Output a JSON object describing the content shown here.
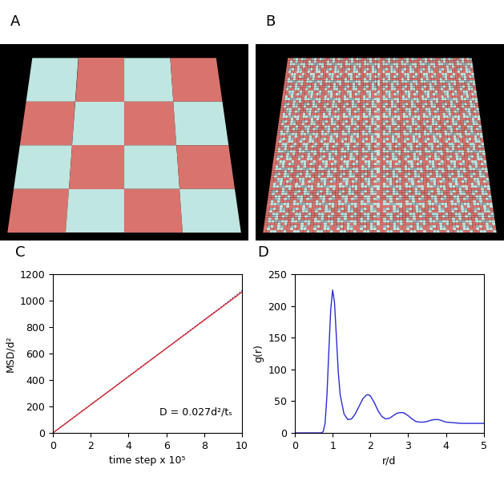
{
  "images": [
    {
      "title": "A",
      "type": "checkerboard",
      "cells": 4,
      "colors": [
        "#d9736e",
        "#bfe6e1"
      ]
    },
    {
      "title": "B",
      "type": "mixed",
      "colors": [
        "#d9736e",
        "#bfe6e1"
      ]
    }
  ],
  "chart_data": [
    {
      "type": "line",
      "title": "C",
      "x_label": "time step x 10⁵",
      "y_label": "MSD/d²",
      "annotations": [
        "D = 0.027d²/tₛ"
      ],
      "x": [
        0,
        1,
        2,
        3,
        4,
        5,
        6,
        7,
        8,
        9,
        10
      ],
      "series": [
        {
          "color": "#2b2bd6",
          "line_style": "dotted",
          "values": [
            0,
            107,
            214,
            320,
            428,
            535,
            640,
            748,
            855,
            962,
            1075
          ]
        },
        {
          "color": "#d62b2b",
          "line_style": "solid",
          "values": [
            0,
            106,
            213,
            319,
            426,
            532,
            639,
            745,
            852,
            958,
            1065
          ]
        }
      ],
      "xlim": [
        0,
        10
      ],
      "xticks": [
        0,
        2,
        4,
        6,
        8,
        10
      ],
      "ylim": [
        0,
        1200
      ],
      "yticks": [
        0,
        200,
        400,
        600,
        800,
        1000,
        1200
      ]
    },
    {
      "type": "line",
      "title": "D",
      "x_label": "r/d",
      "y_label": "g(r)",
      "x": [
        0,
        0.7,
        0.75,
        0.8,
        0.85,
        0.9,
        0.95,
        1.0,
        1.05,
        1.1,
        1.15,
        1.2,
        1.3,
        1.4,
        1.5,
        1.6,
        1.7,
        1.8,
        1.9,
        1.95,
        2.0,
        2.1,
        2.2,
        2.3,
        2.4,
        2.5,
        2.6,
        2.7,
        2.8,
        2.85,
        2.9,
        3.0,
        3.1,
        3.2,
        3.3,
        3.4,
        3.5,
        3.6,
        3.7,
        3.75,
        3.8,
        3.9,
        4.0,
        4.2,
        4.4,
        4.6,
        4.8,
        5.0
      ],
      "series": [
        {
          "color": "#2b2bd6",
          "line_style": "solid",
          "values": [
            0,
            0,
            2,
            15,
            60,
            130,
            195,
            225,
            205,
            150,
            95,
            60,
            30,
            21,
            22,
            30,
            42,
            54,
            60,
            60,
            58,
            48,
            35,
            26,
            22,
            23,
            27,
            31,
            32,
            32,
            31,
            27,
            22,
            18,
            17,
            17,
            18,
            20,
            21,
            21,
            21,
            19,
            17,
            16,
            15,
            15,
            15,
            15
          ]
        }
      ],
      "xlim": [
        0,
        5
      ],
      "xticks": [
        0,
        1,
        2,
        3,
        4,
        5
      ],
      "ylim": [
        0,
        250
      ],
      "yticks": [
        0,
        50,
        100,
        150,
        200,
        250
      ]
    }
  ]
}
